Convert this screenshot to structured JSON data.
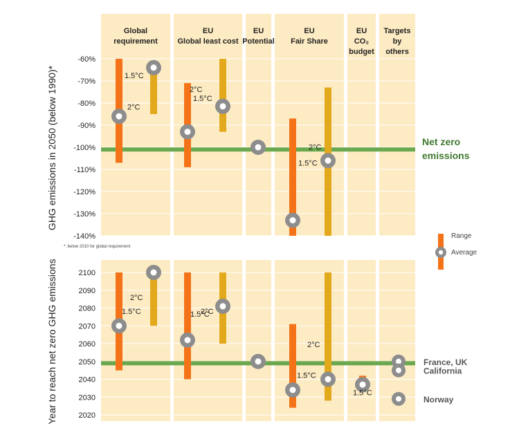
{
  "colors": {
    "band_bg": "#fdebc3",
    "grid": "#ffffff",
    "range_15": "#f47318",
    "range_2": "#e3a91c",
    "marker_outer": "#8d8d8d",
    "marker_inner": "#ffffff",
    "netzero_line": "#6aa84f",
    "netzero_text": "#3f7a2f",
    "text": "#222222",
    "muted_text": "#555555"
  },
  "chart_data": [
    {
      "type": "range",
      "ylabel": "GHG emissions in 2050 (below 1990)*",
      "ylim": [
        -140,
        -50
      ],
      "yticks": [
        -60,
        -70,
        -80,
        -90,
        -100,
        -110,
        -120,
        -130,
        -140
      ],
      "ytick_labels": [
        "-60%",
        "-70%",
        "-80%",
        "-90%",
        "-100%",
        "-110%",
        "-120%",
        "-130%",
        "-140%"
      ],
      "reference_line": {
        "value": -101,
        "label_line1": "Net zero",
        "label_line2": "emissions"
      },
      "footnote": "*: below 2010 for global requirement",
      "categories": [
        {
          "key": "global",
          "lines": [
            "Global",
            "requirement"
          ]
        },
        {
          "key": "eu_glc",
          "lines": [
            "EU",
            "Global least cost"
          ]
        },
        {
          "key": "eu_pot",
          "lines": [
            "EU",
            "Potential"
          ]
        },
        {
          "key": "eu_fair",
          "lines": [
            "EU",
            "Fair Share"
          ]
        },
        {
          "key": "eu_co2",
          "lines": [
            "EU",
            "CO₂",
            "budget"
          ]
        },
        {
          "key": "others",
          "lines": [
            "Targets",
            "by",
            "others"
          ]
        }
      ],
      "series": [
        {
          "category": "global",
          "scenario": "1.5°C",
          "low": -107,
          "high": -60,
          "average": -86,
          "label": "1.5°C"
        },
        {
          "category": "global",
          "scenario": "2°C",
          "low": -85,
          "high": -63,
          "average": -64,
          "label": "2°C"
        },
        {
          "category": "eu_glc",
          "scenario": "1.5°C",
          "low": -109,
          "high": -71,
          "average": -93,
          "label": "1.5°C"
        },
        {
          "category": "eu_glc",
          "scenario": "2°C",
          "low": -93,
          "high": -60,
          "average": -81.5,
          "label": "2°C"
        },
        {
          "category": "eu_pot",
          "scenario": "",
          "low": null,
          "high": null,
          "average": -100,
          "label": ""
        },
        {
          "category": "eu_fair",
          "scenario": "1.5°C",
          "low": -140,
          "high": -87,
          "average": -133,
          "label": "1.5°C"
        },
        {
          "category": "eu_fair",
          "scenario": "2°C",
          "low": -140,
          "high": -73,
          "average": -106,
          "label": "2°C"
        }
      ]
    },
    {
      "type": "range",
      "ylabel": "Year to reach net zero GHG emissions",
      "ylim": [
        2020,
        2100
      ],
      "yticks": [
        2100,
        2090,
        2080,
        2070,
        2060,
        2050,
        2040,
        2030,
        2020
      ],
      "ytick_labels": [
        "2100",
        "2090",
        "2080",
        "2070",
        "2060",
        "2050",
        "2040",
        "2030",
        "2020"
      ],
      "reference_line": {
        "value": 2049
      },
      "series": [
        {
          "category": "global",
          "scenario": "1.5°C",
          "low": 2045,
          "high": 2100,
          "average": 2070,
          "label": "1.5°C"
        },
        {
          "category": "global",
          "scenario": "2°C",
          "low": 2070,
          "high": 2100,
          "average": 2100,
          "label": "2°C"
        },
        {
          "category": "eu_glc",
          "scenario": "1.5°C",
          "low": 2040,
          "high": 2100,
          "average": 2062,
          "label": "1.5°C"
        },
        {
          "category": "eu_glc",
          "scenario": "2°C",
          "low": 2060,
          "high": 2100,
          "average": 2081,
          "label": "2°C"
        },
        {
          "category": "eu_pot",
          "scenario": "",
          "low": null,
          "high": null,
          "average": 2050,
          "label": ""
        },
        {
          "category": "eu_fair",
          "scenario": "1.5°C",
          "low": 2024,
          "high": 2071,
          "average": 2034,
          "label": "1.5°C"
        },
        {
          "category": "eu_fair",
          "scenario": "2°C",
          "low": 2028,
          "high": 2100,
          "average": 2040,
          "label": "2°C"
        },
        {
          "category": "eu_co2",
          "scenario": "1.5°C",
          "low": 2037,
          "high": 2042,
          "average": 2037,
          "label": "1.5°C"
        }
      ],
      "others": [
        {
          "name": "France, UK",
          "year": 2050
        },
        {
          "name": "California",
          "year": 2045
        },
        {
          "name": "Norway",
          "year": 2029
        }
      ]
    }
  ],
  "legend": {
    "range_label": "Range",
    "average_label": "Average"
  }
}
